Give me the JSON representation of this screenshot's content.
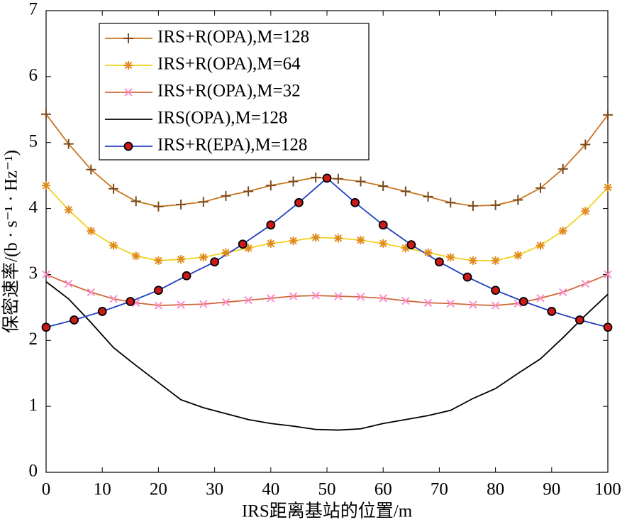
{
  "chart_data": {
    "type": "line",
    "xlabel": "IRS距离基站的位置/m",
    "ylabel": "保密速率/(b · s⁻¹ · Hz⁻¹)",
    "xlim": [
      0,
      100
    ],
    "xticks": [
      0,
      10,
      20,
      30,
      40,
      50,
      60,
      70,
      80,
      90,
      100
    ],
    "ylim": [
      0,
      7
    ],
    "yticks": [
      0,
      1,
      2,
      3,
      4,
      5,
      6,
      7
    ],
    "legend": "upper left",
    "series": [
      {
        "name": "IRS+R(OPA),M=128",
        "color": "#c8761e",
        "marker": "plus",
        "marker_color": "#7a4a1e",
        "x": [
          0,
          4,
          8,
          12,
          16,
          20,
          24,
          28,
          32,
          36,
          40,
          44,
          48,
          52,
          56,
          60,
          64,
          68,
          72,
          76,
          80,
          84,
          88,
          92,
          96,
          100
        ],
        "values": [
          5.43,
          4.98,
          4.59,
          4.3,
          4.11,
          4.03,
          4.06,
          4.1,
          4.19,
          4.26,
          4.35,
          4.41,
          4.47,
          4.45,
          4.41,
          4.34,
          4.26,
          4.18,
          4.09,
          4.04,
          4.05,
          4.13,
          4.31,
          4.6,
          4.97,
          5.42
        ]
      },
      {
        "name": "IRS+R(OPA),M=64",
        "color": "#f2d21e",
        "marker": "star",
        "marker_color": "#e08a1a",
        "x": [
          0,
          4,
          8,
          12,
          16,
          20,
          24,
          28,
          32,
          36,
          40,
          44,
          48,
          52,
          56,
          60,
          64,
          68,
          72,
          76,
          80,
          84,
          88,
          92,
          96,
          100
        ],
        "values": [
          4.35,
          3.98,
          3.66,
          3.44,
          3.28,
          3.21,
          3.23,
          3.26,
          3.33,
          3.4,
          3.47,
          3.51,
          3.56,
          3.55,
          3.52,
          3.47,
          3.4,
          3.33,
          3.26,
          3.21,
          3.21,
          3.29,
          3.44,
          3.66,
          3.96,
          4.32
        ]
      },
      {
        "name": "IRS+R(OPA),M=32",
        "color": "#d2693c",
        "marker": "x",
        "marker_color": "#ff8ccc",
        "x": [
          0,
          4,
          8,
          12,
          16,
          20,
          24,
          28,
          32,
          36,
          40,
          44,
          48,
          52,
          56,
          60,
          64,
          68,
          72,
          76,
          80,
          84,
          88,
          92,
          96,
          100
        ],
        "values": [
          3.0,
          2.86,
          2.73,
          2.63,
          2.57,
          2.53,
          2.54,
          2.55,
          2.58,
          2.61,
          2.64,
          2.67,
          2.68,
          2.67,
          2.66,
          2.64,
          2.6,
          2.57,
          2.56,
          2.54,
          2.53,
          2.56,
          2.64,
          2.73,
          2.86,
          3.0
        ]
      },
      {
        "name": "IRS(OPA),M=128",
        "color": "#000000",
        "marker": "none",
        "marker_color": "#000000",
        "x": [
          0,
          4,
          8,
          12,
          16,
          20,
          24,
          28,
          32,
          36,
          40,
          44,
          48,
          52,
          56,
          60,
          64,
          68,
          72,
          76,
          80,
          84,
          88,
          92,
          96,
          100
        ],
        "values": [
          2.89,
          2.63,
          2.27,
          1.89,
          1.62,
          1.36,
          1.1,
          0.98,
          0.89,
          0.8,
          0.74,
          0.7,
          0.65,
          0.64,
          0.66,
          0.74,
          0.8,
          0.86,
          0.94,
          1.12,
          1.27,
          1.5,
          1.72,
          2.04,
          2.38,
          2.7
        ]
      },
      {
        "name": "IRS+R(EPA),M=128",
        "color": "#1f3fbf",
        "marker": "circle",
        "marker_color": "#cc1a1a",
        "x": [
          0,
          5,
          10,
          15,
          20,
          25,
          30,
          35,
          40,
          45,
          50,
          55,
          60,
          65,
          70,
          75,
          80,
          85,
          90,
          95,
          100
        ],
        "values": [
          2.2,
          2.31,
          2.44,
          2.59,
          2.76,
          2.98,
          3.19,
          3.46,
          3.75,
          4.09,
          4.46,
          4.09,
          3.75,
          3.45,
          3.19,
          2.96,
          2.76,
          2.59,
          2.44,
          2.31,
          2.2
        ]
      }
    ]
  }
}
